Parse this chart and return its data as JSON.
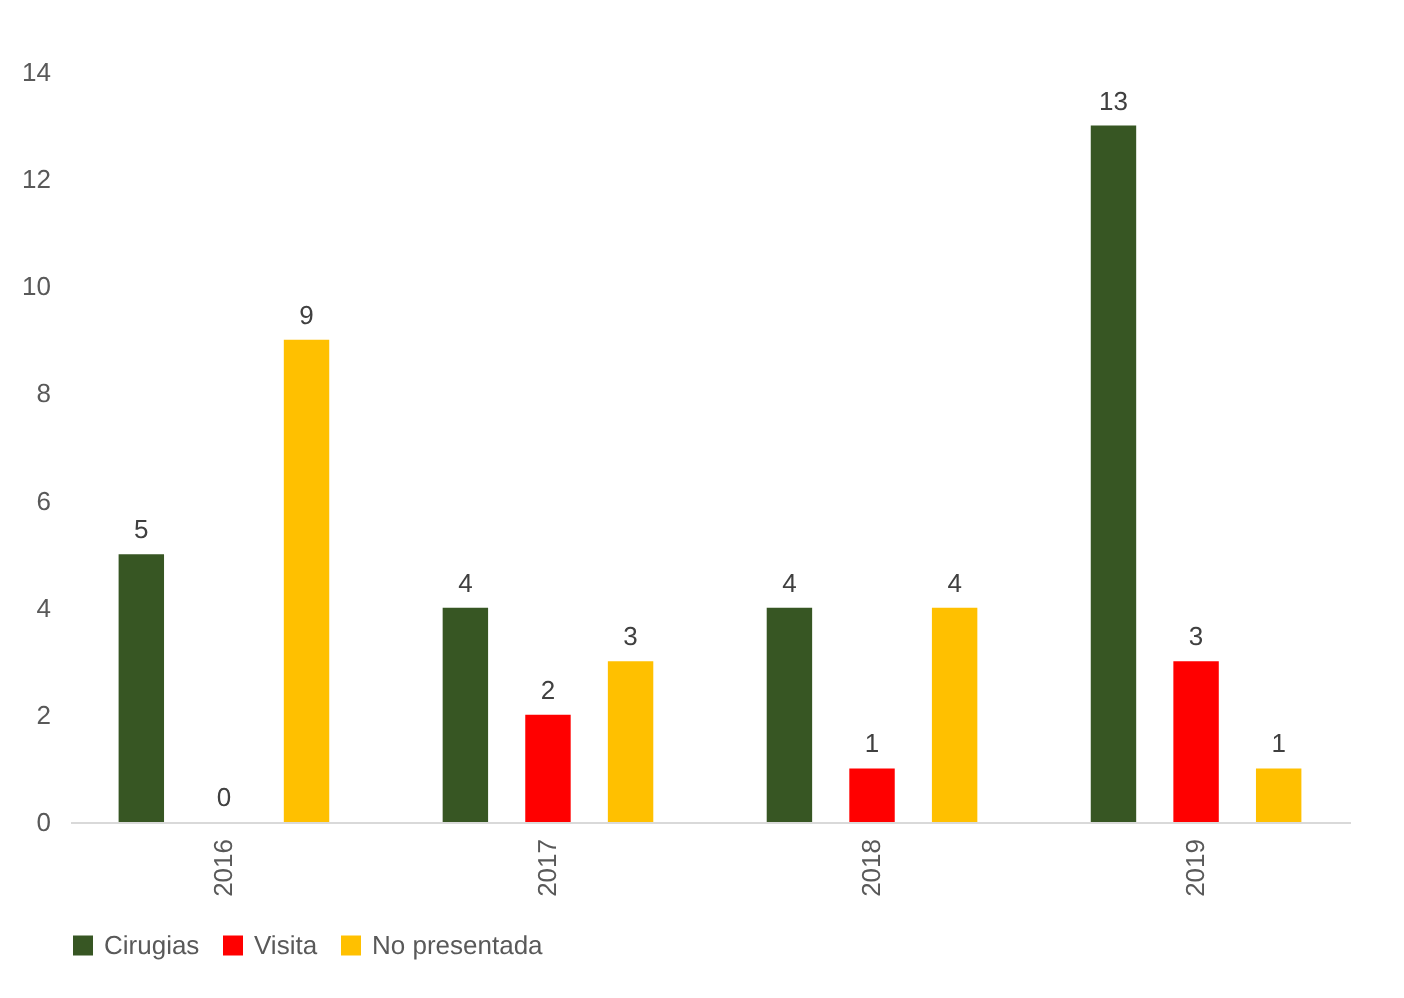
{
  "chart_data": {
    "type": "bar",
    "categories": [
      "2016",
      "2017",
      "2018",
      "2019"
    ],
    "series": [
      {
        "name": "Cirugias",
        "color": "#375623",
        "values": [
          5,
          4,
          4,
          13
        ]
      },
      {
        "name": "Visita",
        "color": "#ff0000",
        "values": [
          0,
          2,
          1,
          3
        ]
      },
      {
        "name": "No presentada",
        "color": "#ffc000",
        "values": [
          9,
          3,
          4,
          1
        ]
      }
    ],
    "ylim": [
      0,
      14
    ],
    "yticks": [
      0,
      2,
      4,
      6,
      8,
      10,
      12,
      14
    ],
    "data_labels": true,
    "legend": "bottom"
  }
}
